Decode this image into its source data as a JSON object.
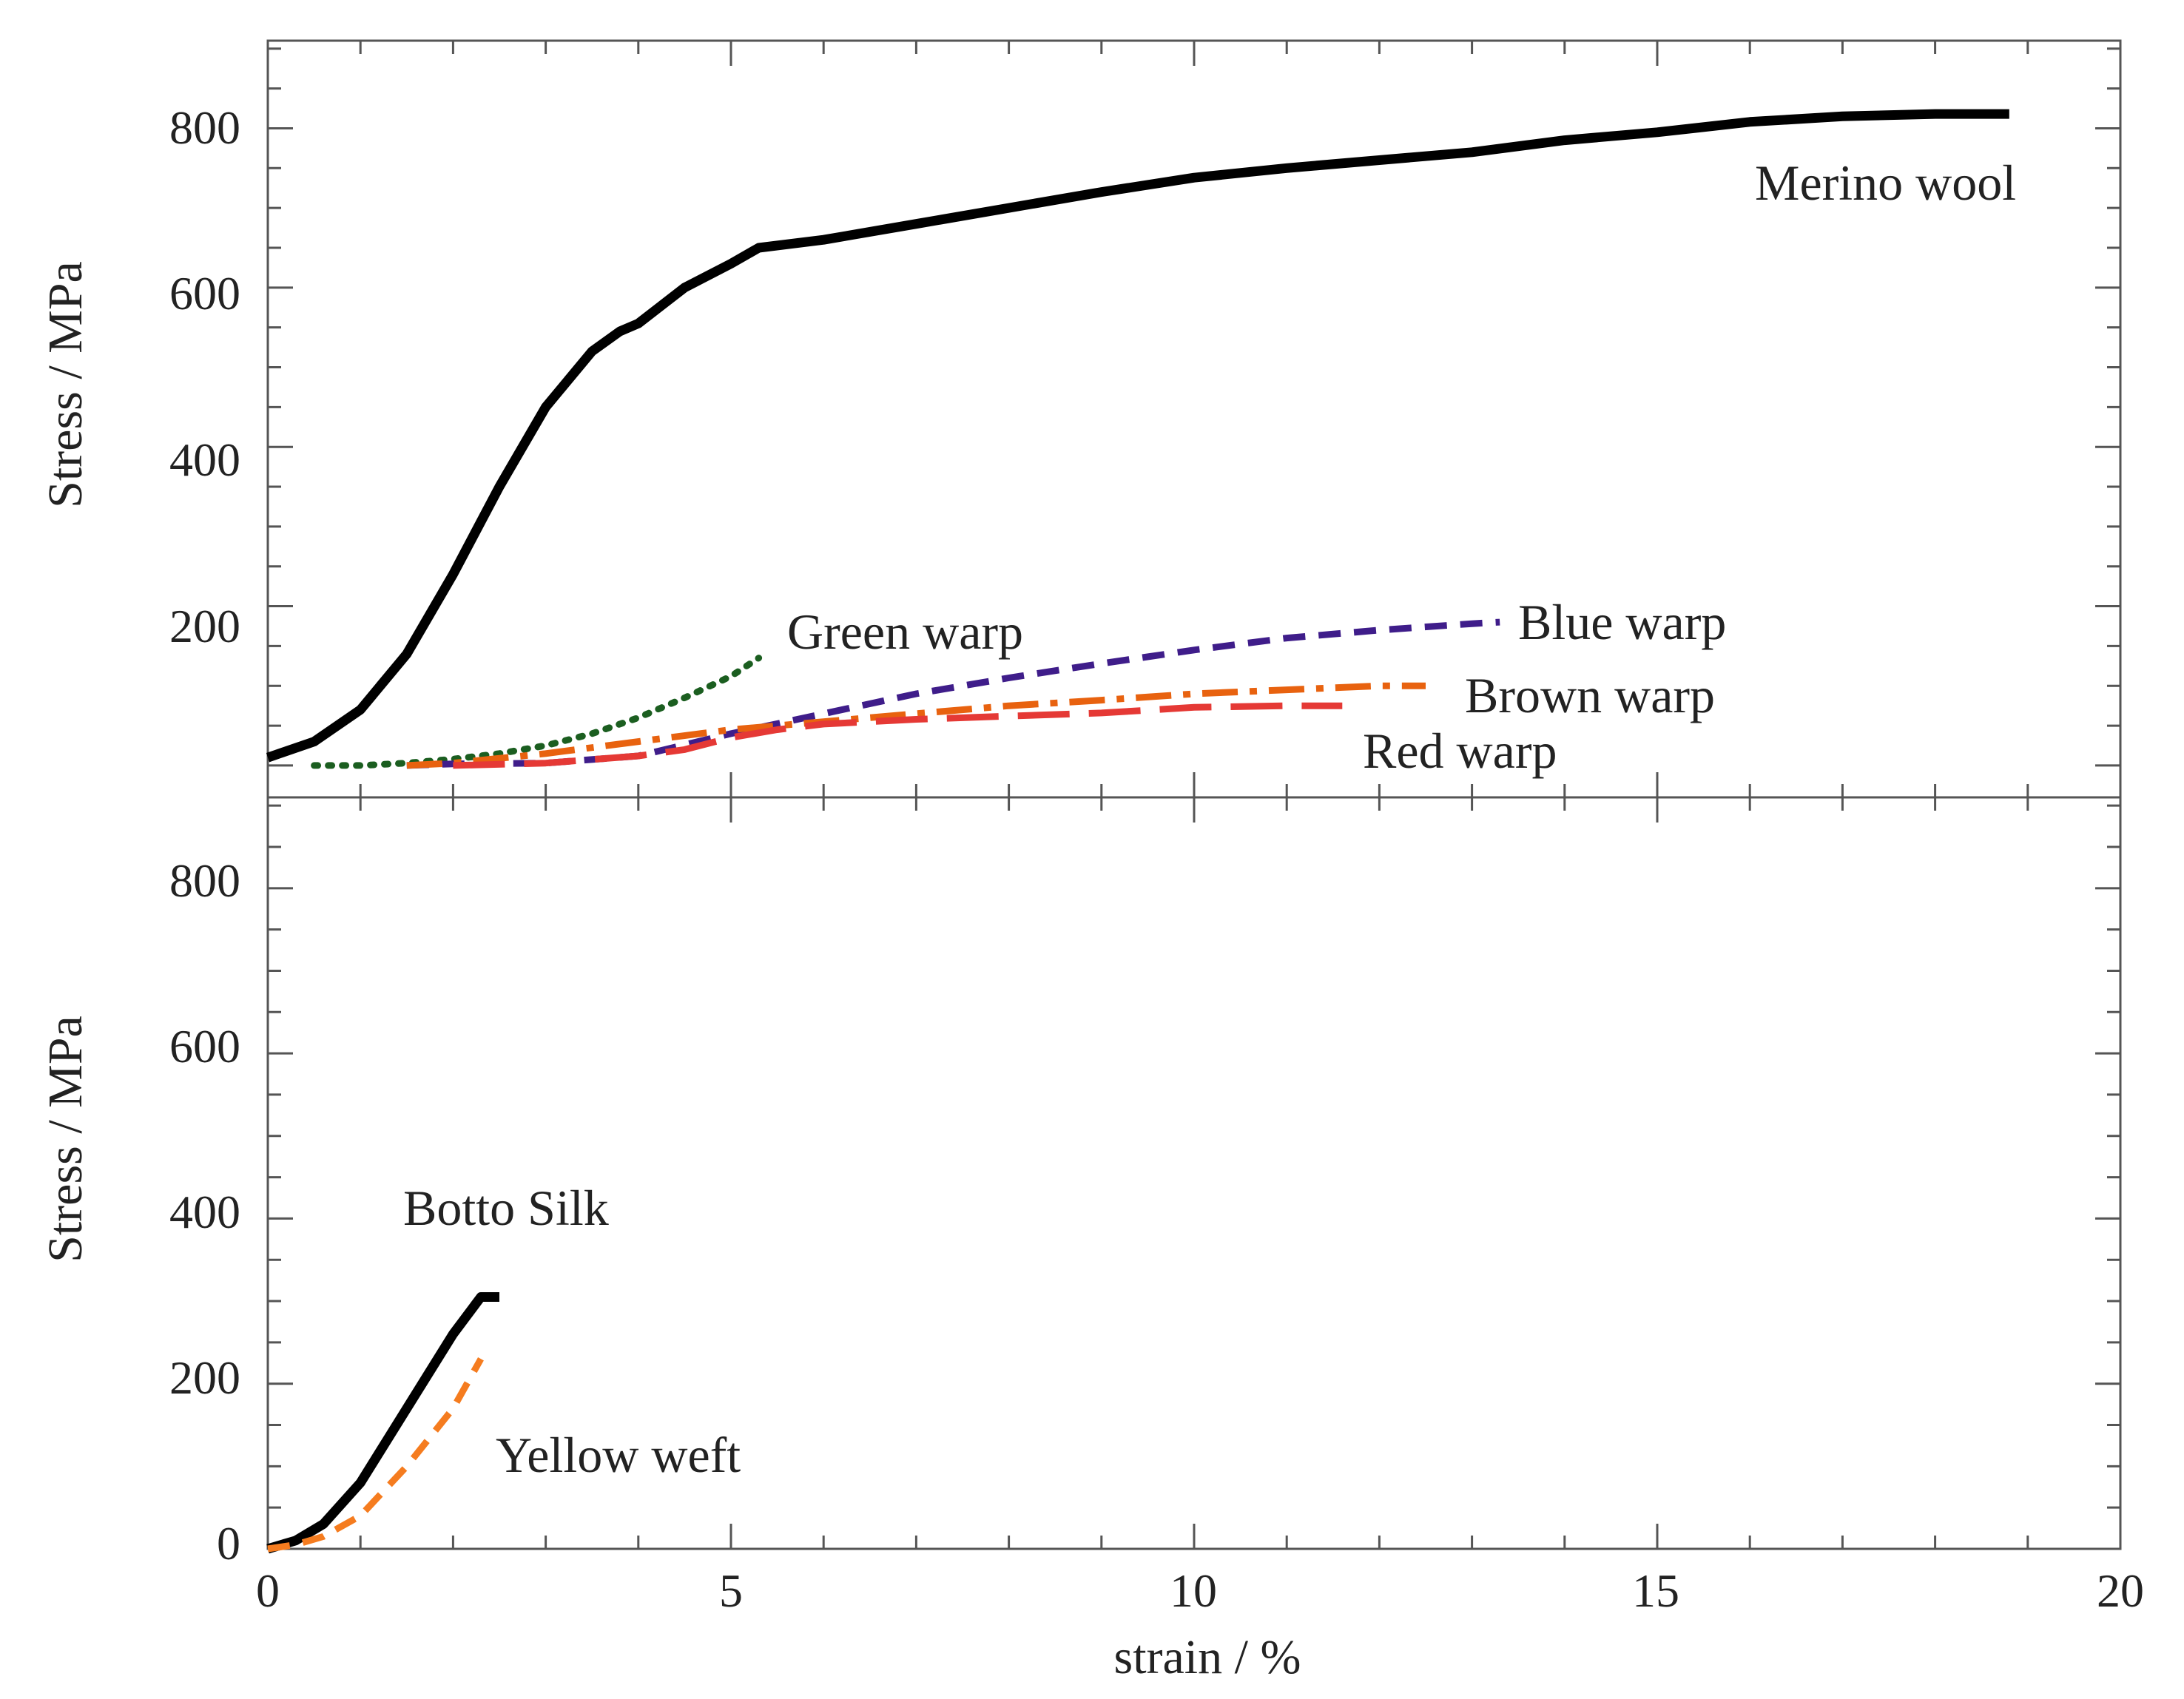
{
  "chart_data": [
    {
      "type": "line",
      "panel": "top",
      "xlabel": "",
      "ylabel": "Stress / MPa",
      "xlim": [
        0,
        20
      ],
      "ylim": [
        -40,
        910
      ],
      "x_ticks": [
        0,
        5,
        10,
        15,
        20
      ],
      "y_ticks": [
        200,
        400,
        600,
        800
      ],
      "y_tick_labels": [
        "200",
        "400",
        "600",
        "800"
      ],
      "grid": false,
      "series": [
        {
          "name": "Merino wool",
          "color": "#000000",
          "dash": "solid",
          "label": "Merino wool",
          "x": [
            0,
            0.5,
            1,
            1.5,
            2,
            2.5,
            3,
            3.5,
            3.8,
            4,
            4.5,
            5,
            5.3,
            6,
            7,
            8,
            9,
            10,
            11,
            12,
            13,
            14,
            15,
            16,
            17,
            18,
            18.8
          ],
          "y": [
            10,
            30,
            70,
            140,
            240,
            350,
            450,
            520,
            545,
            555,
            600,
            630,
            650,
            660,
            680,
            700,
            720,
            738,
            750,
            760,
            770,
            785,
            795,
            808,
            815,
            818,
            818
          ]
        },
        {
          "name": "Green warp",
          "color": "#1b5e20",
          "dash": "dotted",
          "label": "Green warp",
          "x": [
            0.5,
            1,
            1.5,
            2,
            2.5,
            3,
            3.5,
            4,
            4.5,
            5,
            5.3
          ],
          "y": [
            0,
            0,
            3,
            8,
            15,
            25,
            40,
            60,
            85,
            112,
            135
          ]
        },
        {
          "name": "Blue warp",
          "color": "#3f1d8a",
          "dash": "dashed",
          "label": "Blue warp",
          "x": [
            1.5,
            2,
            3,
            4,
            5,
            6,
            7,
            8,
            9,
            10,
            11,
            12,
            13,
            13.3
          ],
          "y": [
            0,
            2,
            3,
            12,
            40,
            65,
            90,
            110,
            128,
            145,
            160,
            170,
            178,
            180
          ]
        },
        {
          "name": "Brown warp",
          "color": "#e8620f",
          "dash": "dash-dot",
          "label": "Brown warp",
          "x": [
            1.5,
            2,
            3,
            4,
            5,
            6,
            7,
            8,
            9,
            10,
            11,
            12,
            12.5
          ],
          "y": [
            0,
            3,
            15,
            30,
            45,
            55,
            65,
            75,
            82,
            90,
            95,
            100,
            100
          ]
        },
        {
          "name": "Red warp",
          "color": "#e53935",
          "dash": "long-dash",
          "label": "Red warp",
          "x": [
            2,
            3,
            4,
            4.5,
            5,
            5.5,
            6,
            7,
            8,
            9,
            10,
            11,
            11.6
          ],
          "y": [
            0,
            3,
            12,
            20,
            35,
            45,
            52,
            58,
            62,
            66,
            73,
            75,
            75
          ]
        }
      ]
    },
    {
      "type": "line",
      "panel": "bottom",
      "xlabel": "strain / %",
      "ylabel": "Stress / MPa",
      "xlim": [
        0,
        20
      ],
      "ylim": [
        0,
        910
      ],
      "x_ticks": [
        0,
        5,
        10,
        15,
        20
      ],
      "x_tick_labels": [
        "0",
        "5",
        "10",
        "15",
        "20"
      ],
      "y_ticks": [
        0,
        200,
        400,
        600,
        800
      ],
      "y_tick_labels": [
        "0",
        "200",
        "400",
        "600",
        "800"
      ],
      "grid": false,
      "series": [
        {
          "name": "Botto Silk",
          "color": "#000000",
          "dash": "solid",
          "label": "Botto Silk",
          "x": [
            0,
            0.3,
            0.6,
            1,
            1.5,
            2,
            2.3,
            2.5
          ],
          "y": [
            0,
            10,
            30,
            80,
            170,
            260,
            305,
            305
          ]
        },
        {
          "name": "Yellow weft",
          "color": "#f57c1f",
          "dash": "dashed",
          "label": "Yellow weft",
          "x": [
            0,
            0.3,
            0.6,
            1,
            1.5,
            2,
            2.3
          ],
          "y": [
            0,
            5,
            15,
            40,
            100,
            170,
            230
          ]
        }
      ]
    }
  ]
}
